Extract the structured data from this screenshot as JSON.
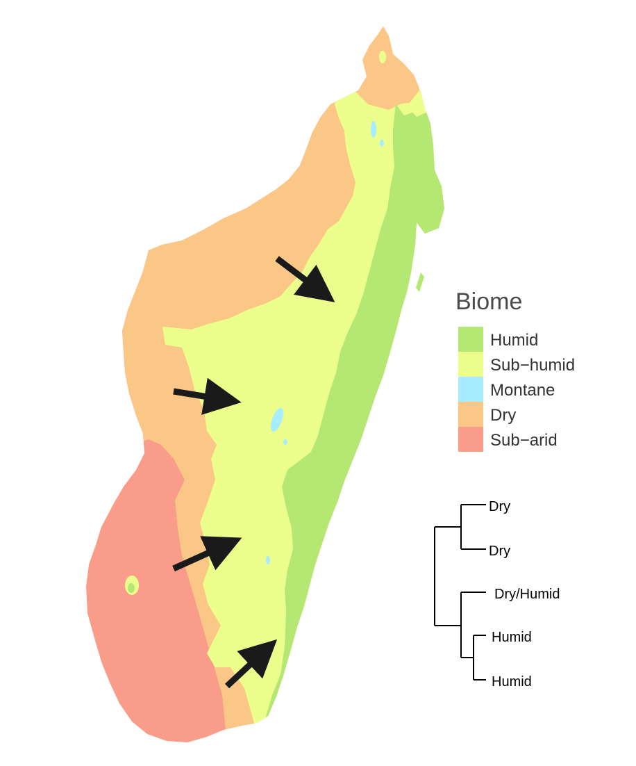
{
  "legend": {
    "title": "Biome",
    "items": [
      {
        "label": "Humid",
        "color": "#b5e873"
      },
      {
        "label": "Sub−humid",
        "color": "#ecff8c"
      },
      {
        "label": "Montane",
        "color": "#a8ecff"
      },
      {
        "label": "Dry",
        "color": "#fac787"
      },
      {
        "label": "Sub−arid",
        "color": "#fa9c8a"
      }
    ]
  },
  "tree": {
    "tips": [
      "Dry",
      "Dry",
      "Dry/Humid",
      "Humid",
      "Humid"
    ]
  },
  "map": {
    "arrow_color": "#1a1a1a",
    "arrow_count": 4
  }
}
